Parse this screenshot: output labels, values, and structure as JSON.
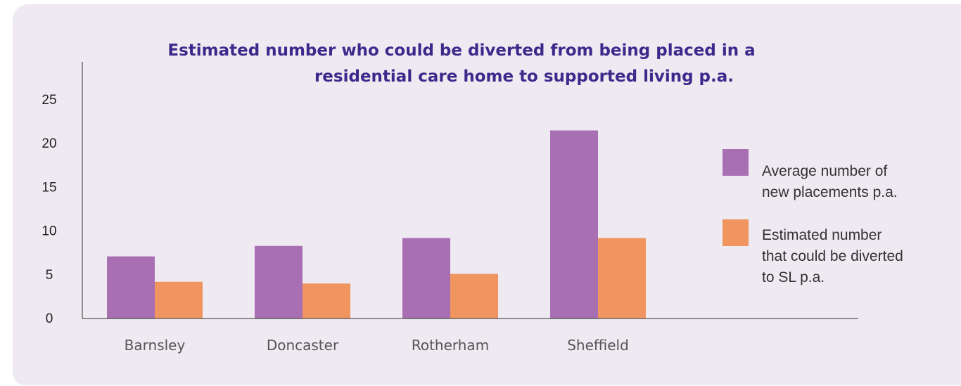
{
  "colors": {
    "background_panel": "#efe9f1",
    "title": "#3b2a8c",
    "series_average": "#a96fb3",
    "series_diverted": "#f0955f",
    "axis": "#333333"
  },
  "chart_data": {
    "type": "bar",
    "title_lines": [
      "Estimated number who could be diverted from being placed in a",
      "residential care home to supported living p.a."
    ],
    "categories": [
      "Barnsley",
      "Doncaster",
      "Rotherham",
      "Sheffield"
    ],
    "series": [
      {
        "name_lines": [
          "Average number of",
          "new placements p.a."
        ],
        "color": "#a96fb3",
        "values": [
          7.1,
          8.3,
          9.2,
          21.5
        ]
      },
      {
        "name_lines": [
          "Estimated number",
          "that could be diverted",
          "to SL p.a."
        ],
        "color": "#f0955f",
        "values": [
          4.2,
          4.0,
          5.1,
          9.2
        ]
      }
    ],
    "ylim": [
      0,
      25
    ],
    "yticks": [
      "0",
      "5",
      "10",
      "15",
      "20",
      "25"
    ],
    "ytick_values": [
      0,
      5,
      10,
      15,
      20,
      25
    ],
    "grid": false,
    "legend_position": "right"
  }
}
